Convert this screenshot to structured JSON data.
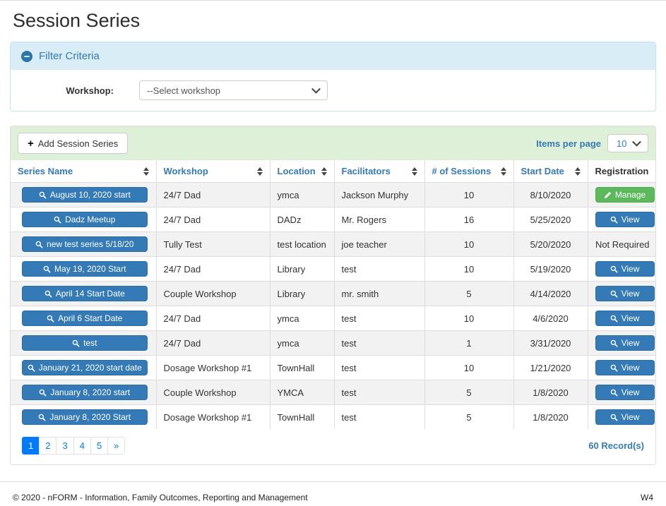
{
  "page": {
    "title": "Session Series",
    "footer": {
      "copyright": "© 2020 - nFORM - Information, Family Outcomes, Reporting and Management",
      "version": "W4"
    }
  },
  "filter": {
    "title": "Filter Criteria",
    "collapse_icon": "minus-circle-icon",
    "workshop_label": "Workshop:",
    "workshop_selected": "--Select workshop"
  },
  "toolbar": {
    "add_button_label": "Add Session Series",
    "add_button_icon": "plus-icon",
    "items_per_page_label": "Items per page",
    "items_per_page_value": "10"
  },
  "table": {
    "columns": [
      {
        "label": "Series Name",
        "sortable": true
      },
      {
        "label": "Workshop",
        "sortable": true
      },
      {
        "label": "Location",
        "sortable": true
      },
      {
        "label": "Facilitators",
        "sortable": true
      },
      {
        "label": "# of Sessions",
        "sortable": true
      },
      {
        "label": "Start Date",
        "sortable": true
      },
      {
        "label": "Registration",
        "sortable": false
      }
    ],
    "rows": [
      {
        "series": "August 10, 2020 start",
        "workshop": "24/7 Dad",
        "location": "ymca",
        "facilitators": "Jackson Murphy",
        "sessions": "10",
        "start_date": "8/10/2020",
        "registration": {
          "type": "manage",
          "label": "Manage",
          "icon": "pencil-icon"
        }
      },
      {
        "series": "Dadz Meetup",
        "workshop": "24/7 Dad",
        "location": "DADz",
        "facilitators": "Mr. Rogers",
        "sessions": "16",
        "start_date": "5/25/2020",
        "registration": {
          "type": "view",
          "label": "View",
          "icon": "search-icon"
        }
      },
      {
        "series": "new test series 5/18/20",
        "workshop": "Tully Test",
        "location": "test location",
        "facilitators": "joe teacher",
        "sessions": "10",
        "start_date": "5/20/2020",
        "registration": {
          "type": "text",
          "label": "Not Required"
        }
      },
      {
        "series": "May 19, 2020 Start",
        "workshop": "24/7 Dad",
        "location": "Library",
        "facilitators": "test",
        "sessions": "10",
        "start_date": "5/19/2020",
        "registration": {
          "type": "view",
          "label": "View",
          "icon": "search-icon"
        }
      },
      {
        "series": "April 14 Start Date",
        "workshop": "Couple Workshop",
        "location": "Library",
        "facilitators": "mr. smith",
        "sessions": "5",
        "start_date": "4/14/2020",
        "registration": {
          "type": "view",
          "label": "View",
          "icon": "search-icon"
        }
      },
      {
        "series": "April 6 Start Date",
        "workshop": "24/7 Dad",
        "location": "ymca",
        "facilitators": "test",
        "sessions": "10",
        "start_date": "4/6/2020",
        "registration": {
          "type": "view",
          "label": "View",
          "icon": "search-icon"
        }
      },
      {
        "series": "test",
        "workshop": "24/7 Dad",
        "location": "ymca",
        "facilitators": "test",
        "sessions": "1",
        "start_date": "3/31/2020",
        "registration": {
          "type": "view",
          "label": "View",
          "icon": "search-icon"
        }
      },
      {
        "series": "January 21, 2020 start date",
        "workshop": "Dosage Workshop #1",
        "location": "TownHall",
        "facilitators": "test",
        "sessions": "10",
        "start_date": "1/21/2020",
        "registration": {
          "type": "view",
          "label": "View",
          "icon": "search-icon"
        }
      },
      {
        "series": "January 8, 2020 start",
        "workshop": "Couple Workshop",
        "location": "YMCA",
        "facilitators": "test",
        "sessions": "5",
        "start_date": "1/8/2020",
        "registration": {
          "type": "view",
          "label": "View",
          "icon": "search-icon"
        }
      },
      {
        "series": "January 8, 2020 Start",
        "workshop": "Dosage Workshop #1",
        "location": "TownHall",
        "facilitators": "test",
        "sessions": "5",
        "start_date": "1/8/2020",
        "registration": {
          "type": "view",
          "label": "View",
          "icon": "search-icon"
        }
      }
    ],
    "series_button_icon": "search-icon"
  },
  "pagination": {
    "pages": [
      "1",
      "2",
      "3",
      "4",
      "5",
      "»"
    ],
    "active_page": "1",
    "record_count": "60 Record(s)"
  },
  "colors": {
    "primary_blue": "#337ab7",
    "primary_blue_border": "#2e6da4",
    "success_green": "#5cb85c",
    "success_green_border": "#4cae4c",
    "pagination_blue": "#007bff",
    "filter_header_bg": "#d9edf7",
    "filter_border": "#bce8f1",
    "toolbar_bg": "#dff0d8",
    "table_border": "#dddddd",
    "striped_row_bg": "#f2f2f2"
  }
}
